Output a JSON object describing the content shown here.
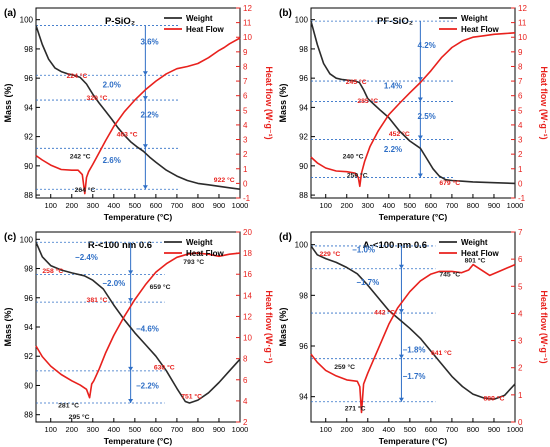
{
  "colors": {
    "weight": "#2b2b2b",
    "heat": "#e8211d",
    "annot_red": "#e8211d",
    "annot_blue": "#2f6fc6",
    "axis": "#000000"
  },
  "chart_data": [
    {
      "type": "line",
      "panel": "(a)",
      "title": "P-SiO₂",
      "xlabel": "Temperature (°C)",
      "ylabel": "Mass (%)",
      "y2label": "Heat flow (W·g⁻¹)",
      "xlim": [
        30,
        1000
      ],
      "xticks": [
        100,
        200,
        300,
        400,
        500,
        600,
        700,
        800,
        900,
        1000
      ],
      "ylim": [
        87.8,
        100.8
      ],
      "yticks": [
        88,
        90,
        92,
        94,
        96,
        98,
        100
      ],
      "y2lim": [
        -1,
        12
      ],
      "y2ticks": [
        -1,
        0,
        1,
        2,
        3,
        4,
        5,
        6,
        7,
        8,
        9,
        10,
        11,
        12
      ],
      "legend_position": "top-right",
      "series": [
        {
          "name": "Weight",
          "axis": "left",
          "color": "#2b2b2b",
          "x": [
            30,
            60,
            90,
            120,
            150,
            180,
            210,
            240,
            270,
            300,
            330,
            360,
            390,
            420,
            450,
            480,
            510,
            540,
            570,
            600,
            650,
            700,
            750,
            800,
            850,
            900,
            950,
            1000
          ],
          "y": [
            99.6,
            98.3,
            97.3,
            96.7,
            96.45,
            96.3,
            96.2,
            96.05,
            95.6,
            94.9,
            94.3,
            93.75,
            93.2,
            92.6,
            92.1,
            91.65,
            91.3,
            91.0,
            90.6,
            90.25,
            89.7,
            89.3,
            89.0,
            88.8,
            88.7,
            88.6,
            88.5,
            88.4
          ]
        },
        {
          "name": "Heat Flow",
          "axis": "right",
          "color": "#e8211d",
          "x": [
            30,
            60,
            100,
            150,
            200,
            230,
            250,
            262,
            270,
            280,
            300,
            330,
            360,
            400,
            450,
            500,
            550,
            600,
            650,
            700,
            750,
            800,
            850,
            900,
            925,
            950,
            975,
            1000
          ],
          "y": [
            1.9,
            1.6,
            1.25,
            0.95,
            0.9,
            0.9,
            0.6,
            -0.7,
            0.4,
            0.8,
            1.3,
            2.1,
            2.9,
            3.9,
            4.9,
            5.7,
            6.4,
            7.0,
            7.5,
            7.85,
            8.0,
            8.2,
            8.6,
            9.1,
            9.3,
            9.55,
            9.75,
            9.95
          ]
        }
      ],
      "annotations": [
        {
          "text": "224 °C",
          "color": "red",
          "x": 225,
          "y": 96.0,
          "axis": "left"
        },
        {
          "text": "320 °C",
          "color": "red",
          "x": 320,
          "y": 94.5,
          "axis": "left"
        },
        {
          "text": "463 °C",
          "color": "red",
          "x": 463,
          "y": 92.0,
          "axis": "left"
        },
        {
          "text": "922 °C",
          "color": "red",
          "x": 925,
          "y": 88.9,
          "axis": "left"
        },
        {
          "text": "242 °C",
          "color": "black",
          "x": 240,
          "y": 90.5,
          "axis": "left"
        },
        {
          "text": "264 °C",
          "color": "black",
          "x": 263,
          "y": 88.2,
          "axis": "left"
        },
        {
          "text": "3.6%",
          "color": "blue",
          "x": 570,
          "y": 98.3,
          "axis": "left"
        },
        {
          "text": "2.0%",
          "color": "blue",
          "x": 390,
          "y": 95.35,
          "axis": "left"
        },
        {
          "text": "2.2%",
          "color": "blue",
          "x": 570,
          "y": 93.3,
          "axis": "left"
        },
        {
          "text": "2.6%",
          "color": "blue",
          "x": 390,
          "y": 90.2,
          "axis": "left"
        }
      ],
      "step_levels": [
        99.6,
        96.2,
        94.5,
        91.2,
        88.4
      ],
      "step_x": 550
    },
    {
      "type": "line",
      "panel": "(b)",
      "title": "PF-SiO₂",
      "xlabel": "Temperature (°C)",
      "ylabel": "Mass (%)",
      "y2label": "Heat flow (W·g⁻¹)",
      "xlim": [
        30,
        1000
      ],
      "xticks": [
        100,
        200,
        300,
        400,
        500,
        600,
        700,
        800,
        900,
        1000
      ],
      "ylim": [
        87.8,
        100.8
      ],
      "yticks": [
        88,
        90,
        92,
        94,
        96,
        98,
        100
      ],
      "y2lim": [
        -1,
        12
      ],
      "y2ticks": [
        -1,
        0,
        1,
        2,
        3,
        4,
        5,
        6,
        7,
        8,
        9,
        10,
        11,
        12
      ],
      "legend_position": "top-right",
      "series": [
        {
          "name": "Weight",
          "axis": "left",
          "color": "#2b2b2b",
          "x": [
            30,
            60,
            90,
            120,
            150,
            180,
            210,
            240,
            260,
            280,
            300,
            330,
            360,
            400,
            450,
            500,
            550,
            580,
            610,
            640,
            670,
            700,
            750,
            800,
            900,
            1000
          ],
          "y": [
            99.9,
            98.3,
            97.0,
            96.3,
            96.0,
            95.9,
            95.85,
            95.8,
            95.7,
            95.2,
            94.6,
            94.2,
            93.8,
            93.3,
            92.4,
            91.7,
            91.2,
            90.5,
            89.8,
            89.3,
            89.05,
            89.0,
            88.95,
            88.9,
            88.85,
            88.8
          ]
        },
        {
          "name": "Heat Flow",
          "axis": "right",
          "color": "#e8211d",
          "x": [
            30,
            60,
            100,
            150,
            200,
            240,
            255,
            262,
            270,
            285,
            310,
            350,
            400,
            452,
            500,
            550,
            600,
            650,
            679,
            700,
            750,
            800,
            850,
            900,
            950,
            1000
          ],
          "y": [
            1.8,
            1.4,
            1.05,
            0.85,
            0.8,
            0.7,
            0.4,
            -0.2,
            0.7,
            1.5,
            2.5,
            3.6,
            4.7,
            5.5,
            6.2,
            6.9,
            7.7,
            8.6,
            9.0,
            9.3,
            9.75,
            10.0,
            10.1,
            10.2,
            10.25,
            10.3
          ]
        }
      ],
      "annotations": [
        {
          "text": "245 °C",
          "color": "red",
          "x": 245,
          "y": 95.6,
          "axis": "left"
        },
        {
          "text": "285 °C",
          "color": "red",
          "x": 300,
          "y": 94.3,
          "axis": "left"
        },
        {
          "text": "452 °C",
          "color": "red",
          "x": 450,
          "y": 92.05,
          "axis": "left"
        },
        {
          "text": "679 °C",
          "color": "red",
          "x": 690,
          "y": 88.7,
          "axis": "left"
        },
        {
          "text": "240 °C",
          "color": "black",
          "x": 230,
          "y": 90.5,
          "axis": "left"
        },
        {
          "text": "259 °C",
          "color": "black",
          "x": 250,
          "y": 89.2,
          "axis": "left"
        },
        {
          "text": "4.2%",
          "color": "blue",
          "x": 580,
          "y": 98.05,
          "axis": "left"
        },
        {
          "text": "1.4%",
          "color": "blue",
          "x": 420,
          "y": 95.3,
          "axis": "left"
        },
        {
          "text": "2.5%",
          "color": "blue",
          "x": 580,
          "y": 93.2,
          "axis": "left"
        },
        {
          "text": "2.2%",
          "color": "blue",
          "x": 420,
          "y": 90.95,
          "axis": "left"
        }
      ],
      "step_levels": [
        99.9,
        95.8,
        94.4,
        91.8,
        89.2
      ],
      "step_x": 550
    },
    {
      "type": "line",
      "panel": "(c)",
      "title": "R-<100 nm 0.6",
      "xlabel": "Temperature (°C)",
      "ylabel": "Mass (%)",
      "y2label": "Heat flow (W·g⁻¹)",
      "xlim": [
        30,
        1000
      ],
      "xticks": [
        100,
        200,
        300,
        400,
        500,
        600,
        700,
        800,
        900,
        1000
      ],
      "ylim": [
        87.5,
        100.5
      ],
      "yticks": [
        88,
        90,
        92,
        94,
        96,
        98,
        100
      ],
      "y2lim": [
        2,
        20
      ],
      "y2ticks": [
        2,
        4,
        6,
        8,
        10,
        12,
        14,
        16,
        18,
        20
      ],
      "legend_position": "top-right",
      "series": [
        {
          "name": "Weight",
          "axis": "left",
          "color": "#2b2b2b",
          "x": [
            30,
            60,
            100,
            150,
            200,
            260,
            300,
            350,
            400,
            450,
            500,
            550,
            600,
            650,
            700,
            740,
            760,
            800,
            850,
            900,
            950,
            1000
          ],
          "y": [
            99.8,
            98.8,
            98.2,
            97.9,
            97.7,
            97.5,
            97.2,
            96.6,
            95.5,
            94.5,
            93.6,
            92.8,
            92.0,
            91.0,
            89.8,
            88.9,
            88.8,
            89.0,
            89.5,
            90.2,
            91.0,
            91.8
          ]
        },
        {
          "name": "Heat Flow",
          "axis": "right",
          "color": "#e8211d",
          "x": [
            30,
            60,
            100,
            150,
            200,
            240,
            270,
            285,
            295,
            305,
            330,
            360,
            400,
            450,
            500,
            550,
            600,
            650,
            700,
            750,
            793,
            850,
            900,
            950,
            1000
          ],
          "y": [
            9.2,
            8.2,
            7.3,
            6.5,
            5.9,
            5.5,
            5.1,
            4.3,
            5.6,
            5.9,
            7.0,
            8.5,
            10.2,
            12.0,
            13.6,
            15.0,
            16.2,
            17.0,
            17.6,
            17.9,
            18.0,
            17.9,
            17.7,
            17.9,
            18.0
          ]
        }
      ],
      "annotations": [
        {
          "text": "258 °C",
          "color": "red",
          "x": 110,
          "y": 97.7,
          "axis": "left"
        },
        {
          "text": "381 °C",
          "color": "red",
          "x": 320,
          "y": 95.7,
          "axis": "left"
        },
        {
          "text": "630 °C",
          "color": "red",
          "x": 640,
          "y": 91.1,
          "axis": "left"
        },
        {
          "text": "751 °C",
          "color": "red",
          "x": 770,
          "y": 89.1,
          "axis": "left"
        },
        {
          "text": "659 °C",
          "color": "black",
          "x": 620,
          "y": 96.6,
          "axis": "left"
        },
        {
          "text": "793 °C",
          "color": "black",
          "x": 780,
          "y": 98.3,
          "axis": "left"
        },
        {
          "text": "281 °C",
          "color": "black",
          "x": 185,
          "y": 88.5,
          "axis": "left"
        },
        {
          "text": "295 °C",
          "color": "black",
          "x": 235,
          "y": 87.7,
          "axis": "left"
        },
        {
          "text": "−2.4%",
          "color": "blue",
          "x": 270,
          "y": 98.6,
          "axis": "left"
        },
        {
          "text": "−2.0%",
          "color": "blue",
          "x": 400,
          "y": 96.8,
          "axis": "left"
        },
        {
          "text": "−4.6%",
          "color": "blue",
          "x": 560,
          "y": 93.7,
          "axis": "left"
        },
        {
          "text": "−2.2%",
          "color": "blue",
          "x": 560,
          "y": 89.8,
          "axis": "left"
        }
      ],
      "step_levels": [
        99.8,
        97.6,
        95.7,
        91.0,
        88.8
      ],
      "step_x": 480
    },
    {
      "type": "line",
      "panel": "(d)",
      "title": "A-<100 nm 0.6",
      "xlabel": "Temperature (°C)",
      "ylabel": "Mass (%)",
      "y2label": "Heat flow (W·g⁻¹)",
      "xlim": [
        30,
        1000
      ],
      "xticks": [
        100,
        200,
        300,
        400,
        500,
        600,
        700,
        800,
        900,
        1000
      ],
      "ylim": [
        93.0,
        100.5
      ],
      "yticks": [
        94,
        96,
        98,
        100
      ],
      "y2lim": [
        0,
        7
      ],
      "y2ticks": [
        0,
        1,
        2,
        3,
        4,
        5,
        6,
        7
      ],
      "legend_position": "top-right",
      "series": [
        {
          "name": "Weight",
          "axis": "left",
          "color": "#2b2b2b",
          "x": [
            30,
            60,
            100,
            150,
            200,
            250,
            300,
            350,
            400,
            450,
            500,
            550,
            600,
            650,
            700,
            750,
            800,
            850,
            900,
            950,
            1000
          ],
          "y": [
            99.95,
            99.6,
            99.45,
            99.3,
            99.1,
            98.85,
            98.4,
            97.9,
            97.4,
            97.05,
            96.7,
            96.3,
            95.8,
            95.3,
            94.8,
            94.4,
            94.1,
            93.95,
            93.9,
            94.05,
            94.5
          ]
        },
        {
          "name": "Heat Flow",
          "axis": "right",
          "color": "#e8211d",
          "x": [
            30,
            60,
            100,
            150,
            200,
            250,
            262,
            270,
            280,
            300,
            350,
            400,
            442,
            500,
            550,
            600,
            641,
            700,
            745,
            780,
            801,
            830,
            880,
            940,
            1000
          ],
          "y": [
            2.5,
            2.2,
            1.9,
            1.7,
            1.55,
            1.5,
            1.3,
            0.35,
            1.4,
            1.8,
            2.7,
            3.6,
            4.2,
            4.8,
            5.2,
            5.45,
            5.55,
            5.55,
            5.5,
            5.6,
            5.8,
            5.65,
            5.4,
            5.6,
            5.8
          ]
        }
      ],
      "annotations": [
        {
          "text": "229 °C",
          "color": "red",
          "x": 120,
          "y": 99.55,
          "axis": "left"
        },
        {
          "text": "442 °C",
          "color": "red",
          "x": 380,
          "y": 97.25,
          "axis": "left"
        },
        {
          "text": "641 °C",
          "color": "red",
          "x": 650,
          "y": 95.65,
          "axis": "left"
        },
        {
          "text": "889 °C",
          "color": "red",
          "x": 900,
          "y": 93.85,
          "axis": "left"
        },
        {
          "text": "745 °C",
          "color": "black",
          "x": 690,
          "y": 98.75,
          "axis": "left"
        },
        {
          "text": "801 °C",
          "color": "black",
          "x": 810,
          "y": 99.3,
          "axis": "left"
        },
        {
          "text": "259 °C",
          "color": "black",
          "x": 190,
          "y": 95.1,
          "axis": "left"
        },
        {
          "text": "271 °C",
          "color": "black",
          "x": 240,
          "y": 93.45,
          "axis": "left"
        },
        {
          "text": "−1.0%",
          "color": "blue",
          "x": 280,
          "y": 99.7,
          "axis": "left"
        },
        {
          "text": "−1.7%",
          "color": "blue",
          "x": 300,
          "y": 98.4,
          "axis": "left"
        },
        {
          "text": "−1.8%",
          "color": "blue",
          "x": 520,
          "y": 95.75,
          "axis": "left"
        },
        {
          "text": "−1.7%",
          "color": "blue",
          "x": 520,
          "y": 94.7,
          "axis": "left"
        }
      ],
      "step_levels": [
        99.95,
        99.05,
        97.3,
        95.5,
        93.8
      ],
      "step_x": 460
    }
  ]
}
